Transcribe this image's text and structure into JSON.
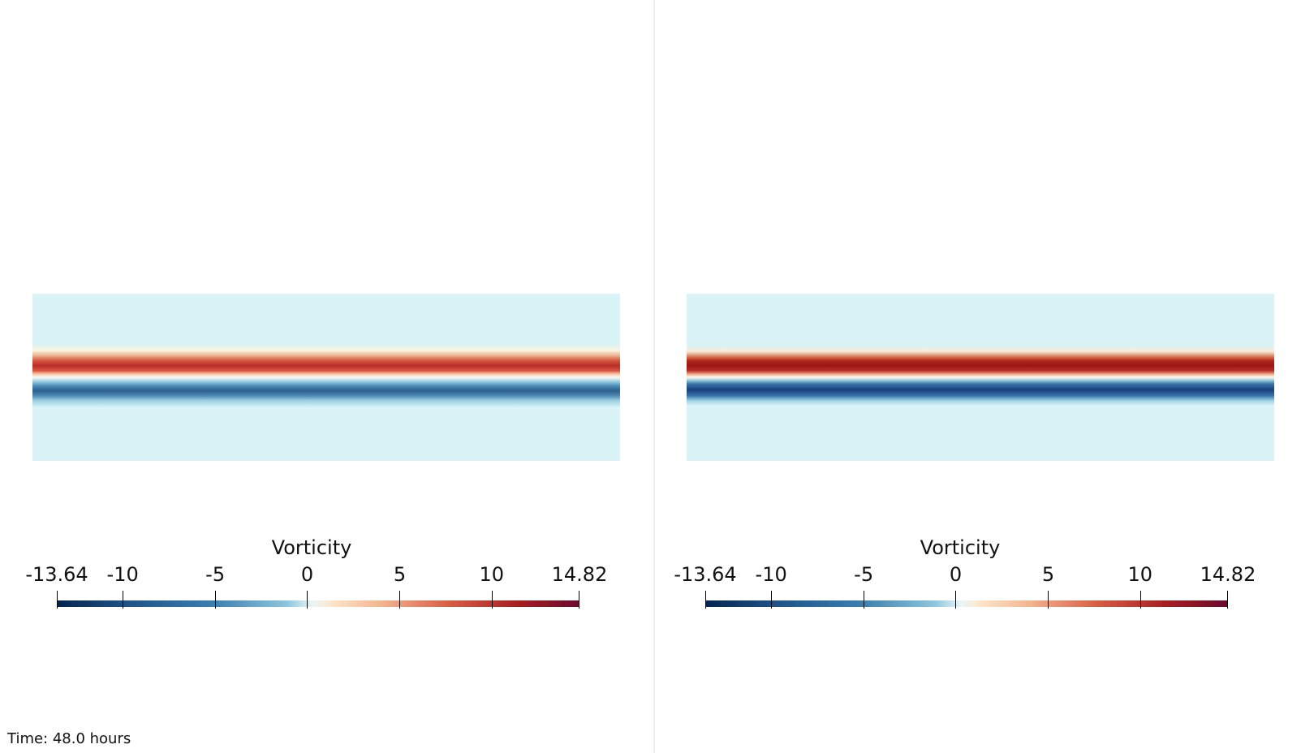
{
  "views": [
    {
      "id": "left",
      "colorbar": {
        "title": "Vorticity",
        "min_label": "-13.64",
        "max_label": "14.82",
        "tick_labels": [
          "-13.64",
          "-10",
          "-5",
          "0",
          "5",
          "10",
          "14.82"
        ],
        "colors": [
          "#05234f",
          "#1b4f84",
          "#3b7fb0",
          "#8ec7dd",
          "#e9f6f8",
          "#fbe9cf",
          "#f4b58f",
          "#d85d46",
          "#a71f22",
          "#6b0a2c"
        ]
      },
      "field": {
        "background": "#d9f3f6",
        "band_positive_color": "#c0392b",
        "band_negative_color": "#2c5f8a"
      }
    },
    {
      "id": "right",
      "colorbar": {
        "title": "Vorticity",
        "min_label": "-13.64",
        "max_label": "14.82",
        "tick_labels": [
          "-13.64",
          "-10",
          "-5",
          "0",
          "5",
          "10",
          "14.82"
        ],
        "colors": [
          "#05234f",
          "#1b4f84",
          "#3b7fb0",
          "#8ec7dd",
          "#e9f6f8",
          "#fbe9cf",
          "#f4b58f",
          "#d85d46",
          "#a71f22",
          "#6b0a2c"
        ]
      },
      "field": {
        "background": "#d9f3f6",
        "band_positive_color": "#a31b1b",
        "band_negative_color": "#1c4580"
      }
    }
  ],
  "time_label": "Time: 48.0 hours"
}
